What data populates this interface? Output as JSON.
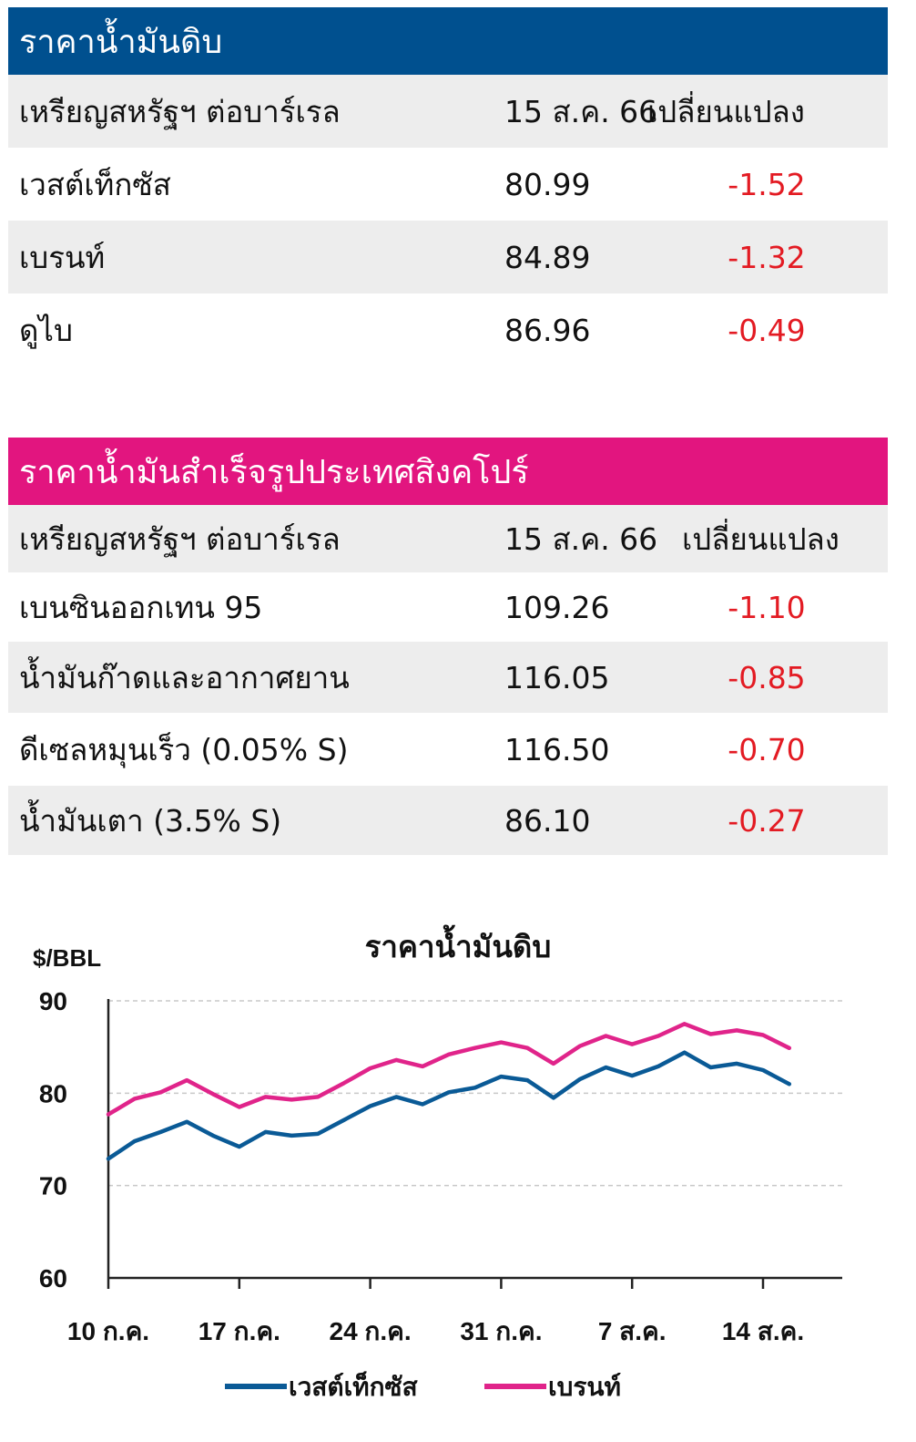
{
  "crude": {
    "title": "ราคาน้ำมันดิบ",
    "header": {
      "label": "เหรียญสหรัฐฯ ต่อบาร์เรล",
      "date": "15 ส.ค. 66",
      "change": "เปลี่ยนแปลง"
    },
    "rows": [
      {
        "name": "เวสต์เท็กซัส",
        "value": "80.99",
        "change": "-1.52"
      },
      {
        "name": "เบรนท์",
        "value": "84.89",
        "change": "-1.32"
      },
      {
        "name": "ดูไบ",
        "value": "86.96",
        "change": "-0.49"
      }
    ]
  },
  "singapore": {
    "title": "ราคาน้ำมันสำเร็จรูปประเทศสิงคโปร์",
    "header": {
      "label": "เหรียญสหรัฐฯ ต่อบาร์เรล",
      "date": "15 ส.ค. 66",
      "change": "เปลี่ยนแปลง"
    },
    "rows": [
      {
        "name": "เบนซินออกเทน 95",
        "value": "109.26",
        "change": "-1.10"
      },
      {
        "name": "น้ำมันก๊าดและอากาศยาน",
        "value": "116.05",
        "change": "-0.85"
      },
      {
        "name": "ดีเซลหมุนเร็ว (0.05% S)",
        "value": "116.50",
        "change": "-0.70"
      },
      {
        "name": "น้ำมันเตา (3.5% S)",
        "value": "86.10",
        "change": "-0.27"
      }
    ]
  },
  "colors": {
    "crude_header": "#00508f",
    "singapore_header": "#e2157f",
    "negative": "#e31b23",
    "wti": "#0a5a96",
    "brent": "#e0248a"
  },
  "chart_data": {
    "type": "line",
    "title": "ราคาน้ำมันดิบ",
    "ylabel": "$/BBL",
    "ylim": [
      60,
      90
    ],
    "yticks": [
      "60",
      "70",
      "80",
      "90"
    ],
    "xticks": [
      "10 ก.ค.",
      "17 ก.ค.",
      "24 ก.ค.",
      "31 ก.ค.",
      "7 ส.ค.",
      "14 ส.ค."
    ],
    "x": [
      "10 ก.ค.",
      "11 ก.ค.",
      "12 ก.ค.",
      "13 ก.ค.",
      "14 ก.ค.",
      "17 ก.ค.",
      "18 ก.ค.",
      "19 ก.ค.",
      "20 ก.ค.",
      "21 ก.ค.",
      "24 ก.ค.",
      "25 ก.ค.",
      "26 ก.ค.",
      "27 ก.ค.",
      "28 ก.ค.",
      "31 ก.ค.",
      "1 ส.ค.",
      "2 ส.ค.",
      "3 ส.ค.",
      "4 ส.ค.",
      "7 ส.ค.",
      "8 ส.ค.",
      "9 ส.ค.",
      "10 ส.ค.",
      "11 ส.ค.",
      "14 ส.ค.",
      "15 ส.ค."
    ],
    "series": [
      {
        "name": "เวสต์เท็กซัส",
        "values": [
          72.9,
          74.8,
          75.8,
          76.9,
          75.4,
          74.2,
          75.8,
          75.4,
          75.6,
          77.1,
          78.6,
          79.6,
          78.8,
          80.1,
          80.6,
          81.8,
          81.4,
          79.5,
          81.5,
          82.8,
          81.9,
          82.9,
          84.4,
          82.8,
          83.2,
          82.5,
          80.99
        ]
      },
      {
        "name": "เบรนท์",
        "values": [
          77.7,
          79.4,
          80.1,
          81.4,
          79.9,
          78.5,
          79.6,
          79.3,
          79.6,
          81.1,
          82.7,
          83.6,
          82.9,
          84.2,
          84.9,
          85.5,
          84.9,
          83.2,
          85.1,
          86.2,
          85.3,
          86.2,
          87.5,
          86.4,
          86.8,
          86.3,
          84.89
        ]
      }
    ],
    "legend_position": "bottom"
  }
}
